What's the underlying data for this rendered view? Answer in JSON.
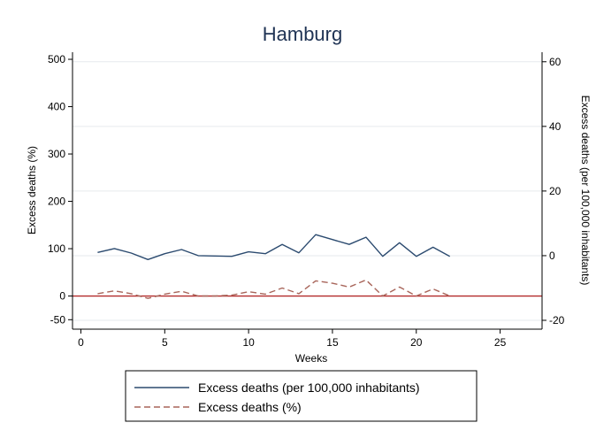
{
  "chart_data": {
    "type": "line",
    "title": "Hamburg",
    "xlabel": "Weeks",
    "ylabel_left": "Excess deaths (%)",
    "ylabel_right": "Excess deaths (per 100,000 inhabitants)",
    "x_ticks": [
      0,
      5,
      10,
      15,
      20,
      25
    ],
    "xlim": [
      -0.5,
      27.5
    ],
    "y_left_ticks": [
      -50,
      0,
      100,
      200,
      300,
      400,
      500
    ],
    "y_left_lim": [
      -70,
      515
    ],
    "y_right_ticks": [
      -20,
      0,
      20,
      40,
      60
    ],
    "y_right_lim": [
      -22.74,
      62.95
    ],
    "grid": true,
    "reference_line": {
      "axis": "left",
      "value": 0,
      "color": "#b22a2a"
    },
    "legend_position": "bottom",
    "series": [
      {
        "name": "Excess deaths (per 100,000 inhabitants)",
        "axis": "right",
        "style": "solid",
        "color": "#2b4a6f",
        "x": [
          1,
          2,
          3,
          4,
          5,
          6,
          7,
          8,
          9,
          10,
          11,
          12,
          13,
          14,
          15,
          16,
          17,
          18,
          19,
          20,
          21,
          22
        ],
        "y": [
          1.0,
          2.2,
          0.8,
          -1.2,
          0.6,
          1.9,
          0.0,
          -0.1,
          -0.2,
          1.2,
          0.6,
          3.5,
          0.9,
          6.5,
          5.0,
          3.5,
          5.7,
          -0.2,
          4.0,
          -0.2,
          2.6,
          -0.2
        ]
      },
      {
        "name": "Excess deaths (%)",
        "axis": "left",
        "style": "dashed",
        "color": "#a8655a",
        "x": [
          1,
          2,
          3,
          4,
          5,
          6,
          7,
          8,
          9,
          10,
          11,
          12,
          13,
          14,
          15,
          16,
          17,
          18,
          19,
          20,
          21,
          22
        ],
        "y": [
          5,
          11,
          5,
          -5,
          4,
          10,
          0,
          0,
          2,
          9,
          4,
          17,
          5,
          32,
          27,
          19,
          34,
          0,
          19,
          0,
          15,
          0
        ]
      }
    ]
  }
}
